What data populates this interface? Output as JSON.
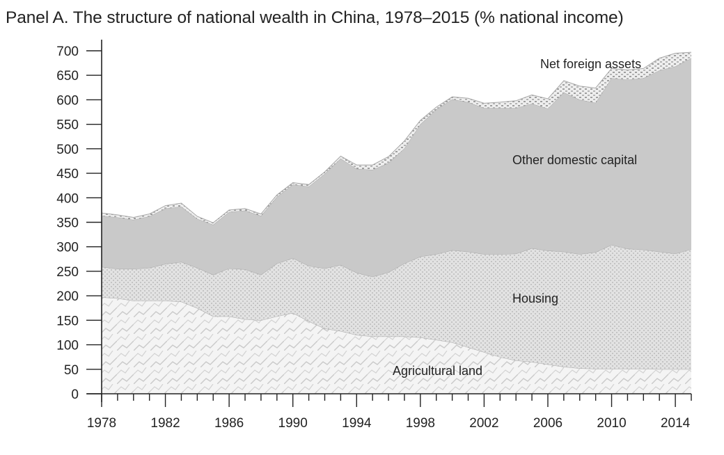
{
  "chart_data": {
    "type": "area",
    "title": "Panel A. The structure of national wealth in China, 1978–2015 (% national income)",
    "xlabel": "",
    "ylabel": "",
    "xlim": [
      1978,
      2015
    ],
    "ylim": [
      0,
      700
    ],
    "stacked": true,
    "grid": false,
    "legend": "inline labels",
    "x_ticks": [
      1978,
      1982,
      1986,
      1990,
      1994,
      1998,
      2002,
      2006,
      2010,
      2014
    ],
    "y_ticks": [
      0,
      50,
      100,
      150,
      200,
      250,
      300,
      350,
      400,
      450,
      500,
      550,
      600,
      650,
      700
    ],
    "x": [
      1978,
      1979,
      1980,
      1981,
      1982,
      1983,
      1984,
      1985,
      1986,
      1987,
      1988,
      1989,
      1990,
      1991,
      1992,
      1993,
      1994,
      1995,
      1996,
      1997,
      1998,
      1999,
      2000,
      2001,
      2002,
      2003,
      2004,
      2005,
      2006,
      2007,
      2008,
      2009,
      2010,
      2011,
      2012,
      2013,
      2014,
      2015
    ],
    "series": [
      {
        "name": "Agricultural land",
        "values": [
          197,
          195,
          190,
          190,
          190,
          188,
          175,
          158,
          158,
          152,
          150,
          158,
          165,
          148,
          133,
          128,
          120,
          117,
          117,
          117,
          115,
          110,
          105,
          95,
          85,
          75,
          68,
          65,
          60,
          55,
          52,
          51,
          51,
          51,
          51,
          50,
          50,
          50
        ]
      },
      {
        "name": "Housing",
        "values": [
          62,
          60,
          65,
          67,
          75,
          81,
          82,
          85,
          98,
          102,
          93,
          108,
          112,
          113,
          123,
          135,
          127,
          122,
          131,
          149,
          165,
          175,
          188,
          195,
          200,
          210,
          218,
          232,
          232,
          235,
          233,
          238,
          253,
          245,
          243,
          240,
          236,
          245
        ]
      },
      {
        "name": "Other domestic capital",
        "values": [
          104,
          105,
          100,
          105,
          113,
          113,
          100,
          102,
          115,
          120,
          120,
          136,
          150,
          162,
          193,
          217,
          212,
          218,
          223,
          235,
          270,
          295,
          308,
          305,
          298,
          298,
          297,
          295,
          290,
          325,
          315,
          305,
          340,
          345,
          350,
          370,
          382,
          390
        ]
      },
      {
        "name": "Net foreign assets",
        "values": [
          6,
          5,
          5,
          5,
          6,
          7,
          5,
          4,
          4,
          4,
          4,
          4,
          4,
          4,
          4,
          5,
          8,
          10,
          13,
          15,
          8,
          5,
          5,
          8,
          10,
          12,
          15,
          18,
          20,
          24,
          28,
          30,
          20,
          20,
          20,
          25,
          27,
          12
        ]
      }
    ],
    "colors": {
      "Agricultural land": "#f2f2f2",
      "Housing": "#dcdcdc",
      "Other domestic capital": "#c8c8c8",
      "Net foreign assets": "#e8e8e8",
      "axis": "#222222",
      "edge": "#a8a8a8"
    }
  }
}
